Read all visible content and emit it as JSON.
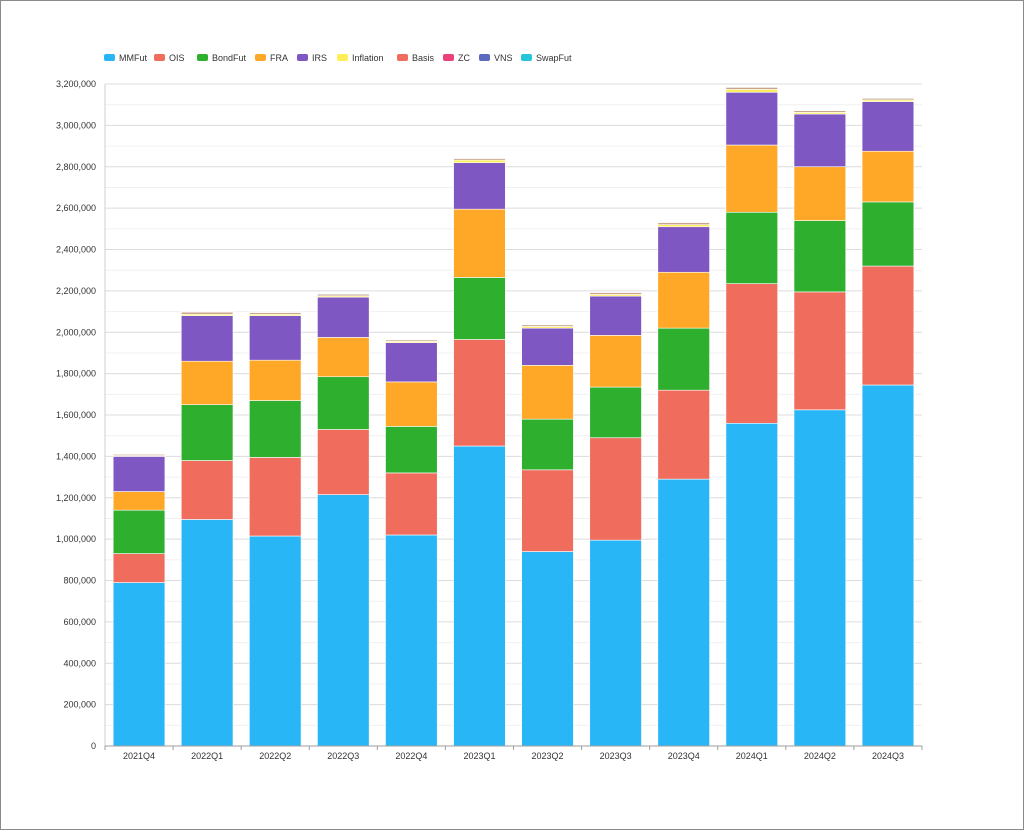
{
  "chart_data": {
    "type": "bar",
    "stacked": true,
    "grid": true,
    "legend_position": "top-left",
    "ylim": [
      0,
      3200000
    ],
    "yticks": [
      0,
      200000,
      400000,
      600000,
      800000,
      1000000,
      1200000,
      1400000,
      1600000,
      1800000,
      2000000,
      2200000,
      2400000,
      2600000,
      2800000,
      3000000,
      3200000
    ],
    "ytick_labels": [
      "0",
      "200,000",
      "400,000",
      "600,000",
      "800,000",
      "1,000,000",
      "1,200,000",
      "1,400,000",
      "1,600,000",
      "1,800,000",
      "2,000,000",
      "2,200,000",
      "2,400,000",
      "2,600,000",
      "2,800,000",
      "3,000,000",
      "3,200,000"
    ],
    "categories": [
      "2021Q4",
      "2022Q1",
      "2022Q2",
      "2022Q3",
      "2022Q4",
      "2023Q1",
      "2023Q2",
      "2023Q3",
      "2023Q4",
      "2024Q1",
      "2024Q2",
      "2024Q3"
    ],
    "series": [
      {
        "name": "MMFut",
        "color": "#29b6f6",
        "values": [
          790000,
          1095000,
          1015000,
          1215000,
          1020000,
          1450000,
          940000,
          995000,
          1290000,
          1560000,
          1625000,
          1745000
        ]
      },
      {
        "name": "OIS",
        "color": "#f06c5d",
        "values": [
          140000,
          285000,
          380000,
          315000,
          300000,
          515000,
          395000,
          495000,
          430000,
          675000,
          570000,
          575000
        ]
      },
      {
        "name": "BondFut",
        "color": "#2eaf2e",
        "values": [
          210000,
          270000,
          275000,
          255000,
          225000,
          300000,
          245000,
          245000,
          300000,
          345000,
          345000,
          310000
        ]
      },
      {
        "name": "FRA",
        "color": "#ffa726",
        "values": [
          90000,
          210000,
          195000,
          190000,
          215000,
          330000,
          260000,
          250000,
          270000,
          325000,
          260000,
          245000
        ]
      },
      {
        "name": "IRS",
        "color": "#7e57c2",
        "values": [
          170000,
          220000,
          215000,
          195000,
          190000,
          225000,
          180000,
          190000,
          220000,
          255000,
          255000,
          240000
        ]
      },
      {
        "name": "Inflation",
        "color": "#ffee58",
        "values": [
          4000,
          7000,
          7000,
          6000,
          6000,
          12000,
          8000,
          8000,
          10000,
          14000,
          8000,
          8000
        ]
      },
      {
        "name": "Basis",
        "color": "#c9a48a",
        "values": [
          6000,
          10000,
          8000,
          8000,
          7000,
          8000,
          8000,
          9000,
          10000,
          10000,
          8000,
          8000
        ]
      },
      {
        "name": "ZC",
        "color": "#ec407a",
        "values": [
          1000,
          2000,
          2000,
          2000,
          2000,
          2000,
          2000,
          2000,
          2000,
          2000,
          2000,
          2000
        ]
      },
      {
        "name": "VNS",
        "color": "#5c6bc0",
        "values": [
          1000,
          1000,
          1000,
          1000,
          1000,
          1000,
          1000,
          1000,
          1000,
          1000,
          1000,
          1000
        ]
      },
      {
        "name": "SwapFut",
        "color": "#26c6da",
        "values": [
          500,
          500,
          500,
          500,
          500,
          500,
          500,
          500,
          500,
          500,
          500,
          500
        ]
      }
    ],
    "legend_colors": [
      "#29b6f6",
      "#f06c5d",
      "#2eaf2e",
      "#ffa726",
      "#7e57c2",
      "#ffee58",
      "#f06c5d",
      "#ec407a",
      "#5c6bc0",
      "#26c6da"
    ]
  }
}
